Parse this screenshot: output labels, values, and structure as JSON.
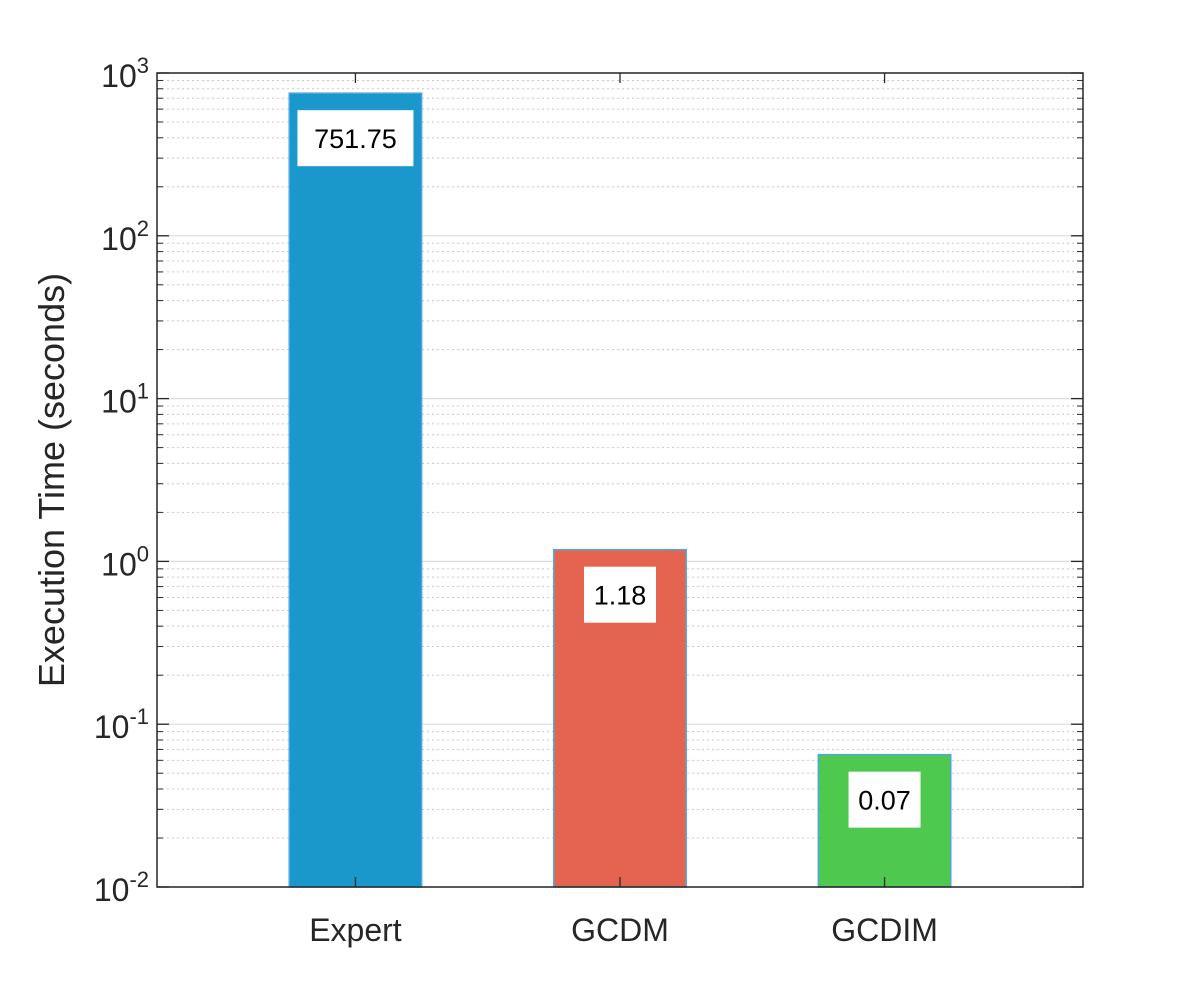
{
  "chart_data": {
    "type": "bar",
    "title": "",
    "xlabel": "",
    "ylabel": "Execution Time (seconds)",
    "yscale": "log",
    "ylim": [
      0.01,
      1000
    ],
    "grid": true,
    "minor_grid": true,
    "legend": "none",
    "categories": [
      "Expert",
      "GCDM",
      "GCDIM"
    ],
    "values": [
      751.75,
      1.18,
      0.065
    ],
    "data_labels": [
      "751.75",
      "1.18",
      "0.07"
    ],
    "bar_colors": [
      "#1b98cb",
      "#e5644f",
      "#4ec94d"
    ],
    "bar_edge_color": "#4da6e0",
    "yticks": [
      {
        "base": "10",
        "exp": "-2",
        "value": 0.01
      },
      {
        "base": "10",
        "exp": "-1",
        "value": 0.1
      },
      {
        "base": "10",
        "exp": "0",
        "value": 1
      },
      {
        "base": "10",
        "exp": "1",
        "value": 10
      },
      {
        "base": "10",
        "exp": "2",
        "value": 100
      },
      {
        "base": "10",
        "exp": "3",
        "value": 1000
      }
    ]
  }
}
